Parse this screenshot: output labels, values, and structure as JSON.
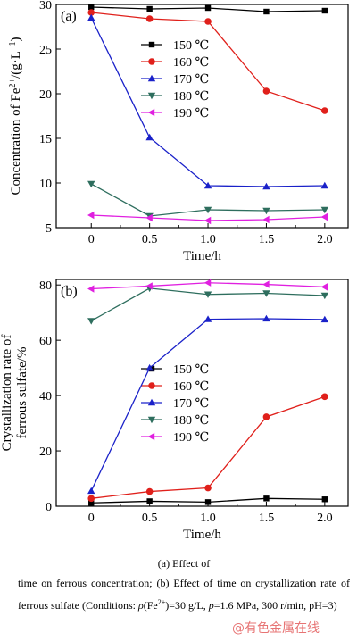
{
  "chart_data": [
    {
      "type": "line",
      "panel_label": "(a)",
      "ylabel_html": "Concentration of Fe<tspan baseline-shift=\"super\" font-size=\"10\">2+</tspan>/(g·L<tspan baseline-shift=\"super\" font-size=\"10\">−1</tspan>)",
      "ylabel": "Concentration of Fe2+/(g·L−1)",
      "xlabel": "Time/h",
      "x_ticks": [
        "0",
        "0.5",
        "1.0",
        "1.5",
        "2.0"
      ],
      "y_ticks": [
        "5",
        "10",
        "15",
        "20",
        "25",
        "30"
      ],
      "xlim": [
        -0.3,
        2.2
      ],
      "ylim": [
        5,
        30
      ],
      "x": [
        0,
        0.5,
        1.0,
        1.5,
        2.0
      ],
      "legend_position": "center-right",
      "series": [
        {
          "name": "150 ℃",
          "color": "#000000",
          "marker": "square",
          "values": [
            29.7,
            29.5,
            29.6,
            29.2,
            29.3
          ]
        },
        {
          "name": "160 ℃",
          "color": "#e0201b",
          "marker": "circle",
          "values": [
            29.1,
            28.4,
            28.1,
            20.3,
            18.1
          ]
        },
        {
          "name": "170 ℃",
          "color": "#1a21c9",
          "marker": "triangle-up",
          "values": [
            28.5,
            15.1,
            9.7,
            9.6,
            9.7
          ]
        },
        {
          "name": "180 ℃",
          "color": "#2e6e5e",
          "marker": "triangle-down",
          "values": [
            9.9,
            6.3,
            7.0,
            6.9,
            7.0
          ]
        },
        {
          "name": "190 ℃",
          "color": "#e020e0",
          "marker": "triangle-left",
          "values": [
            6.4,
            6.1,
            5.8,
            5.9,
            6.2
          ]
        }
      ]
    },
    {
      "type": "line",
      "panel_label": "(b)",
      "ylabel_line1": "Crystallization rate of",
      "ylabel_line2": "ferrous sulfate/%",
      "xlabel": "Time/h",
      "x_ticks": [
        "0",
        "0.5",
        "1.0",
        "1.5",
        "2.0"
      ],
      "y_ticks": [
        "0",
        "20",
        "40",
        "60",
        "80"
      ],
      "xlim": [
        -0.3,
        2.2
      ],
      "ylim": [
        0,
        82
      ],
      "x": [
        0,
        0.5,
        1.0,
        1.5,
        2.0
      ],
      "legend_position": "center-right",
      "series": [
        {
          "name": "150 ℃",
          "color": "#000000",
          "marker": "square",
          "values": [
            1.2,
            1.8,
            1.5,
            2.8,
            2.5
          ]
        },
        {
          "name": "160 ℃",
          "color": "#e0201b",
          "marker": "circle",
          "values": [
            2.8,
            5.3,
            6.6,
            32.3,
            39.6
          ]
        },
        {
          "name": "170 ℃",
          "color": "#1a21c9",
          "marker": "triangle-up",
          "values": [
            5.5,
            50.0,
            67.6,
            67.8,
            67.5
          ]
        },
        {
          "name": "180 ℃",
          "color": "#2e6e5e",
          "marker": "triangle-down",
          "values": [
            67.0,
            78.8,
            76.6,
            77.0,
            76.2
          ]
        },
        {
          "name": "190 ℃",
          "color": "#e020e0",
          "marker": "triangle-left",
          "values": [
            78.6,
            79.6,
            80.8,
            80.2,
            79.3
          ]
        }
      ]
    }
  ],
  "caption": {
    "line1": "(a)  Effect  of",
    "rest_html": "time  on  ferrous  concentration;  (b)  Effect  of  time  on crystallization rate of ferrous sulfate (Conditions: <i>ρ</i>(Fe<sup style=\"font-size:8px\">2+</sup>)=30 g/L, <i>p</i>=1.6 MPa, 300 r/min, pH=3)"
  },
  "watermark": "@有色金属在线"
}
